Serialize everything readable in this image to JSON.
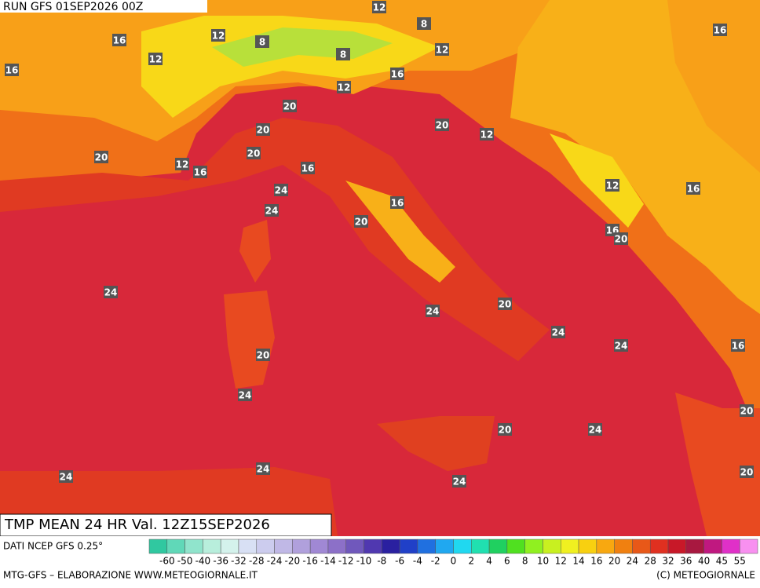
{
  "header": {
    "title": "RUN GFS 01SEP2026 00Z"
  },
  "contour_labels": [
    12,
    8,
    16,
    12,
    8,
    8,
    12,
    16,
    12,
    16,
    12,
    16,
    20,
    20,
    12,
    20,
    20,
    20,
    12,
    16,
    16,
    24,
    24,
    12,
    16,
    16,
    20,
    16,
    20,
    24,
    20,
    24,
    24,
    24,
    16,
    20,
    24,
    20,
    20,
    24,
    24,
    24,
    20,
    24
  ],
  "footer": {
    "field": "TMP MEAN 24 HR Val. 12Z15SEP2026",
    "source": "DATI NCEP GFS 0.25°",
    "credit": "MTG-GFS – ELABORAZIONE WWW.METEOGIORNALE.IT",
    "copyright": "(C) METEOGIORNALE"
  },
  "colorbar": {
    "labels": [
      -60,
      -50,
      -40,
      -36,
      -32,
      -28,
      -24,
      -20,
      -16,
      -14,
      -12,
      -10,
      -8,
      -6,
      -4,
      -2,
      0,
      2,
      4,
      6,
      8,
      10,
      12,
      14,
      16,
      20,
      24,
      28,
      32,
      36,
      40,
      45,
      55
    ],
    "colors": [
      "#30c8a0",
      "#60d8b8",
      "#90e4cc",
      "#b8eedc",
      "#d4f2ec",
      "#d8e0f4",
      "#ccccee",
      "#c0b8e6",
      "#b0a0dc",
      "#a088d4",
      "#8c70c8",
      "#7058bc",
      "#5038b0",
      "#2a20a0",
      "#2040c8",
      "#2070e0",
      "#20a8f0",
      "#20d8f0",
      "#20e0b0",
      "#20d060",
      "#50e020",
      "#90f020",
      "#c8f020",
      "#f0f020",
      "#f8d010",
      "#f8a810",
      "#f08010",
      "#e85818",
      "#e03020",
      "#c81828",
      "#a81840",
      "#c01880",
      "#e030c8",
      "#f890f0"
    ]
  }
}
